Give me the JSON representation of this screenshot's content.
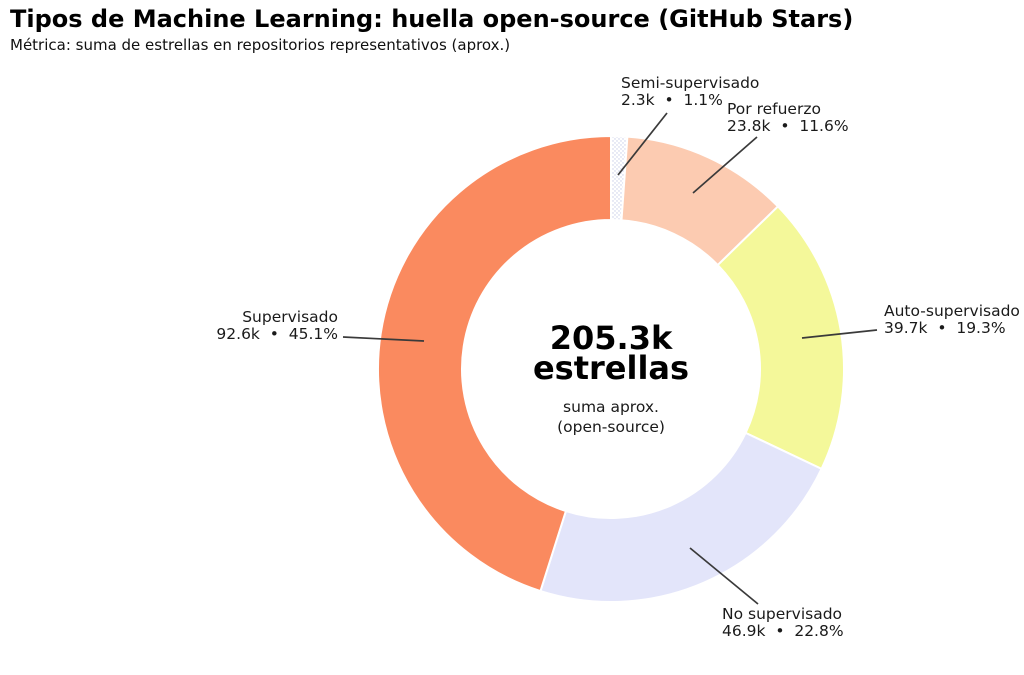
{
  "chart_data": {
    "type": "pie",
    "subtype": "donut",
    "title": "Tipos de Machine Learning: huella open-source (GitHub Stars)",
    "subtitle": "Métrica: suma de estrellas en repositorios representativos (aprox.)",
    "legend": "none (direct wedge labels with leader lines)",
    "start_angle_deg": 90,
    "direction": "clockwise",
    "inner_radius_ratio": 0.64,
    "total_value_k": 205.3,
    "center_label": {
      "value": "205.3k",
      "unit": "estrellas",
      "note1": "suma aprox.",
      "note2": "(open-source)"
    },
    "segments": [
      {
        "label": "Semi-supervisado",
        "value_k": 2.3,
        "value_label": "2.3k",
        "percent": 1.1,
        "percent_label": "1.1%",
        "stats": "2.3k  •  1.1%",
        "color": "#ffffff",
        "hatch": true,
        "hatch_dot_color": "#c8cce8"
      },
      {
        "label": "Por refuerzo",
        "value_k": 23.8,
        "value_label": "23.8k",
        "percent": 11.6,
        "percent_label": "11.6%",
        "stats": "23.8k  •  11.6%",
        "color": "#fccbb1",
        "hatch": false
      },
      {
        "label": "Auto-supervisado",
        "value_k": 39.7,
        "value_label": "39.7k",
        "percent": 19.3,
        "percent_label": "19.3%",
        "stats": "39.7k  •  19.3%",
        "color": "#f4f89a",
        "hatch": false
      },
      {
        "label": "No supervisado",
        "value_k": 46.9,
        "value_label": "46.9k",
        "percent": 22.8,
        "percent_label": "22.8%",
        "stats": "46.9k  •  22.8%",
        "color": "#e3e5fa",
        "hatch": false
      },
      {
        "label": "Supervisado",
        "value_k": 92.6,
        "value_label": "92.6k",
        "percent": 45.1,
        "percent_label": "45.1%",
        "stats": "92.6k  •  45.1%",
        "color": "#fa8a5f",
        "hatch": false
      }
    ],
    "colors": {
      "wedge_edge": "#ffffff",
      "leader_line": "#3a3a3a",
      "text": "#111111"
    }
  }
}
